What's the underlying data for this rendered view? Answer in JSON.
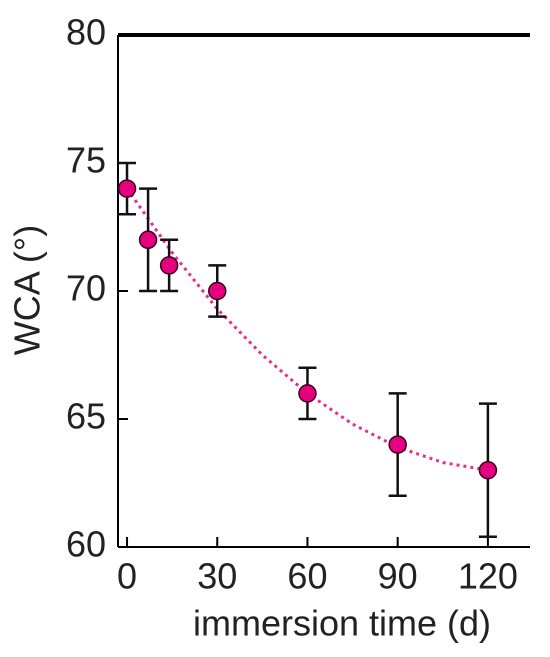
{
  "chart_data": {
    "type": "scatter",
    "x_label": "immersion time (d)",
    "y_label": "WCA (°)",
    "xlim": [
      -3,
      134
    ],
    "xticks": [
      0,
      30,
      60,
      90,
      120
    ],
    "ylim": [
      60,
      80
    ],
    "yticks": [
      60,
      65,
      70,
      75,
      80
    ],
    "series": [
      {
        "color": "#e6007e",
        "x": [
          0,
          7,
          14,
          30,
          60,
          90,
          120
        ],
        "values": [
          74,
          72,
          71,
          70,
          66,
          64,
          63
        ],
        "errors": [
          1,
          2,
          1,
          1,
          1,
          2,
          2.6
        ]
      }
    ],
    "fit": {
      "color": "#ee2a8a",
      "style": "dotted",
      "x": [
        0,
        15,
        30,
        45,
        60,
        75,
        90,
        105,
        120
      ],
      "values": [
        74,
        71.5,
        69.3,
        67.5,
        66.0,
        64.8,
        63.9,
        63.3,
        63.0
      ]
    }
  }
}
